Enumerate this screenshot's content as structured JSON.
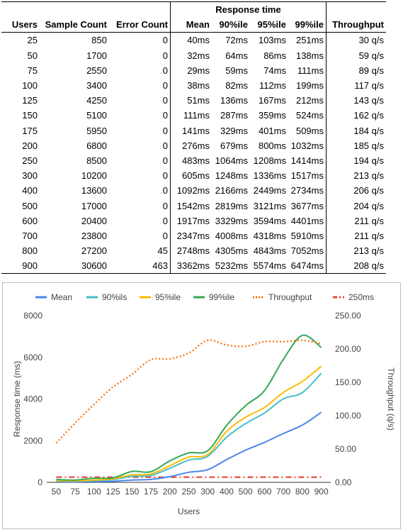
{
  "table": {
    "group_header": "Response time",
    "headers": {
      "users": "Users",
      "sample_count": "Sample Count",
      "error_count": "Error Count",
      "mean": "Mean",
      "p90": "90%ile",
      "p95": "95%ile",
      "p99": "99%ile",
      "throughput": "Throughput"
    },
    "rows": [
      [
        "25",
        "850",
        "0",
        "40ms",
        "72ms",
        "103ms",
        "251ms",
        "30 q/s"
      ],
      [
        "50",
        "1700",
        "0",
        "32ms",
        "64ms",
        "86ms",
        "138ms",
        "59 q/s"
      ],
      [
        "75",
        "2550",
        "0",
        "29ms",
        "59ms",
        "74ms",
        "111ms",
        "89 q/s"
      ],
      [
        "100",
        "3400",
        "0",
        "38ms",
        "82ms",
        "112ms",
        "199ms",
        "117 q/s"
      ],
      [
        "125",
        "4250",
        "0",
        "51ms",
        "136ms",
        "167ms",
        "212ms",
        "143 q/s"
      ],
      [
        "150",
        "5100",
        "0",
        "111ms",
        "287ms",
        "359ms",
        "524ms",
        "162 q/s"
      ],
      [
        "175",
        "5950",
        "0",
        "141ms",
        "329ms",
        "401ms",
        "509ms",
        "184 q/s"
      ],
      [
        "200",
        "6800",
        "0",
        "276ms",
        "679ms",
        "800ms",
        "1032ms",
        "185 q/s"
      ],
      [
        "250",
        "8500",
        "0",
        "483ms",
        "1064ms",
        "1208ms",
        "1414ms",
        "194 q/s"
      ],
      [
        "300",
        "10200",
        "0",
        "605ms",
        "1248ms",
        "1336ms",
        "1517ms",
        "213 q/s"
      ],
      [
        "400",
        "13600",
        "0",
        "1092ms",
        "2166ms",
        "2449ms",
        "2734ms",
        "206 q/s"
      ],
      [
        "500",
        "17000",
        "0",
        "1542ms",
        "2819ms",
        "3121ms",
        "3677ms",
        "204 q/s"
      ],
      [
        "600",
        "20400",
        "0",
        "1917ms",
        "3329ms",
        "3594ms",
        "4401ms",
        "211 q/s"
      ],
      [
        "700",
        "23800",
        "0",
        "2347ms",
        "4008ms",
        "4318ms",
        "5910ms",
        "211 q/s"
      ],
      [
        "800",
        "27200",
        "45",
        "2748ms",
        "4305ms",
        "4843ms",
        "7052ms",
        "213 q/s"
      ],
      [
        "900",
        "30600",
        "463",
        "3362ms",
        "5232ms",
        "5574ms",
        "6474ms",
        "208 q/s"
      ]
    ]
  },
  "chart_data": {
    "type": "line",
    "categories": [
      "50",
      "75",
      "100",
      "125",
      "150",
      "175",
      "200",
      "250",
      "300",
      "400",
      "500",
      "600",
      "700",
      "800",
      "900"
    ],
    "xlabel": "Users",
    "ylabel": "Response time (ms)",
    "y2label": "Throughput (q/s)",
    "ylim": [
      0,
      8000
    ],
    "yticks": [
      "0",
      "2000",
      "4000",
      "6000",
      "8000"
    ],
    "y2lim": [
      0,
      250
    ],
    "y2ticks": [
      "0.00",
      "50.00",
      "100.00",
      "150.00",
      "200.00",
      "250.00"
    ],
    "grid": false,
    "legend_position": "top",
    "series": [
      {
        "name": "Mean",
        "color": "#4a86e8",
        "style": "solid",
        "axis": "left",
        "values": [
          32,
          29,
          38,
          51,
          111,
          141,
          276,
          483,
          605,
          1092,
          1542,
          1917,
          2347,
          2748,
          3362
        ]
      },
      {
        "name": "90%ils",
        "color": "#46bdc6",
        "style": "solid",
        "axis": "left",
        "values": [
          64,
          59,
          82,
          136,
          287,
          329,
          679,
          1064,
          1248,
          2166,
          2819,
          3329,
          4008,
          4305,
          5232
        ]
      },
      {
        "name": "95%ile",
        "color": "#fbbc04",
        "style": "solid",
        "axis": "left",
        "values": [
          86,
          74,
          112,
          167,
          359,
          401,
          800,
          1208,
          1336,
          2449,
          3121,
          3594,
          4318,
          4843,
          5574
        ]
      },
      {
        "name": "99%ile",
        "color": "#34a853",
        "style": "solid",
        "axis": "left",
        "values": [
          138,
          111,
          199,
          212,
          524,
          509,
          1032,
          1414,
          1517,
          2734,
          3677,
          4401,
          5910,
          7052,
          6474
        ]
      },
      {
        "name": "Throughput",
        "color": "#ff6d01",
        "style": "dotted",
        "axis": "right",
        "values": [
          59,
          89,
          117,
          143,
          162,
          184,
          185,
          194,
          213,
          206,
          204,
          211,
          211,
          213,
          208
        ]
      },
      {
        "name": "250ms",
        "color": "#ea4335",
        "style": "dashdot",
        "axis": "left",
        "values": [
          250,
          250,
          250,
          250,
          250,
          250,
          250,
          250,
          250,
          250,
          250,
          250,
          250,
          250,
          250
        ]
      }
    ]
  }
}
